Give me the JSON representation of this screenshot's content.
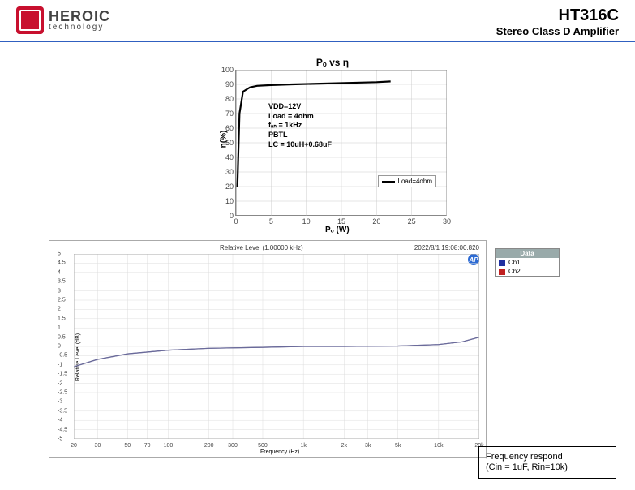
{
  "header": {
    "brand": "HEROIC",
    "tagline": "technology",
    "part_no": "HT316C",
    "part_desc": "Stereo Class D Amplifier"
  },
  "chart1": {
    "type": "line",
    "title": "Pₒ vs η",
    "xlabel": "Pₒ (W)",
    "ylabel": "η(%)",
    "xlim": [
      0,
      30
    ],
    "xtick_step": 5,
    "ylim": [
      0,
      100
    ],
    "ytick_step": 10,
    "grid_color": "#cccccc",
    "background_color": "#ffffff",
    "curve_color": "#000000",
    "curve_width": 2.2,
    "xticks": [
      0,
      5,
      10,
      15,
      20,
      25,
      30
    ],
    "yticks": [
      0,
      10,
      20,
      30,
      40,
      50,
      60,
      70,
      80,
      90,
      100
    ],
    "series": [
      {
        "name": "Load=4ohm",
        "color": "#000000",
        "x": [
          0.2,
          0.5,
          1,
          2,
          3,
          5,
          8,
          12,
          16,
          20,
          22
        ],
        "y": [
          20,
          70,
          85,
          88,
          89,
          89.5,
          90,
          90.5,
          91,
          91.5,
          92
        ]
      }
    ],
    "conditions": [
      "VDD=12V",
      "Load = 4ohm",
      "fₐₙ = 1kHz",
      "PBTL",
      "LC = 10uH+0.68uF"
    ],
    "legend_label": "Load=4ohm",
    "title_fontsize": 12,
    "label_fontsize": 10,
    "tick_fontsize": 9
  },
  "chart2": {
    "type": "line",
    "title": "Relative Level (1.00000 kHz)",
    "date": "2022/8/1 19:08:00.820",
    "logo_text": "AP",
    "xlabel": "Frequency (Hz)",
    "ylabel": "Relative Level (dB)",
    "xscale": "log",
    "xlim": [
      20,
      20000
    ],
    "ylim": [
      -5,
      5
    ],
    "ytick_step": 0.5,
    "xticks": [
      20,
      30,
      50,
      70,
      100,
      200,
      300,
      500,
      "1k",
      "2k",
      "3k",
      "5k",
      "10k",
      "20k"
    ],
    "xtick_vals": [
      20,
      30,
      50,
      70,
      100,
      200,
      300,
      500,
      1000,
      2000,
      3000,
      5000,
      10000,
      20000
    ],
    "yticks": [
      -5,
      -4.5,
      -4,
      -3.5,
      -3,
      -2.5,
      -2,
      -1.5,
      -1,
      -0.5,
      0,
      0.5,
      1,
      1.5,
      2,
      2.5,
      3,
      3.5,
      4,
      4.5,
      5
    ],
    "grid_color": "#dddddd",
    "background_color": "#ffffff",
    "curve_color": "#6a6a9a",
    "series": [
      {
        "name": "Ch1",
        "color": "#2030a0",
        "x": [
          20,
          30,
          50,
          100,
          200,
          500,
          1000,
          2000,
          5000,
          10000,
          15000,
          20000
        ],
        "y": [
          -1.1,
          -0.7,
          -0.4,
          -0.2,
          -0.1,
          -0.05,
          0,
          0,
          0.02,
          0.1,
          0.25,
          0.5
        ]
      },
      {
        "name": "Ch2",
        "color": "#c02020",
        "x": [
          20,
          30,
          50,
          100,
          200,
          500,
          1000,
          2000,
          5000,
          10000,
          15000,
          20000
        ],
        "y": [
          -1.1,
          -0.7,
          -0.4,
          -0.2,
          -0.1,
          -0.05,
          0,
          0,
          0.02,
          0.1,
          0.25,
          0.5
        ]
      }
    ],
    "legend": {
      "title": "Data",
      "items": [
        {
          "label": "Ch1",
          "color": "#2030a0"
        },
        {
          "label": "Ch2",
          "color": "#c02020"
        }
      ]
    },
    "title_fontsize": 8,
    "tick_fontsize": 7
  },
  "caption": {
    "line1": "Frequency respond",
    "line2": "(Cin = 1uF, Rin=10k)"
  }
}
